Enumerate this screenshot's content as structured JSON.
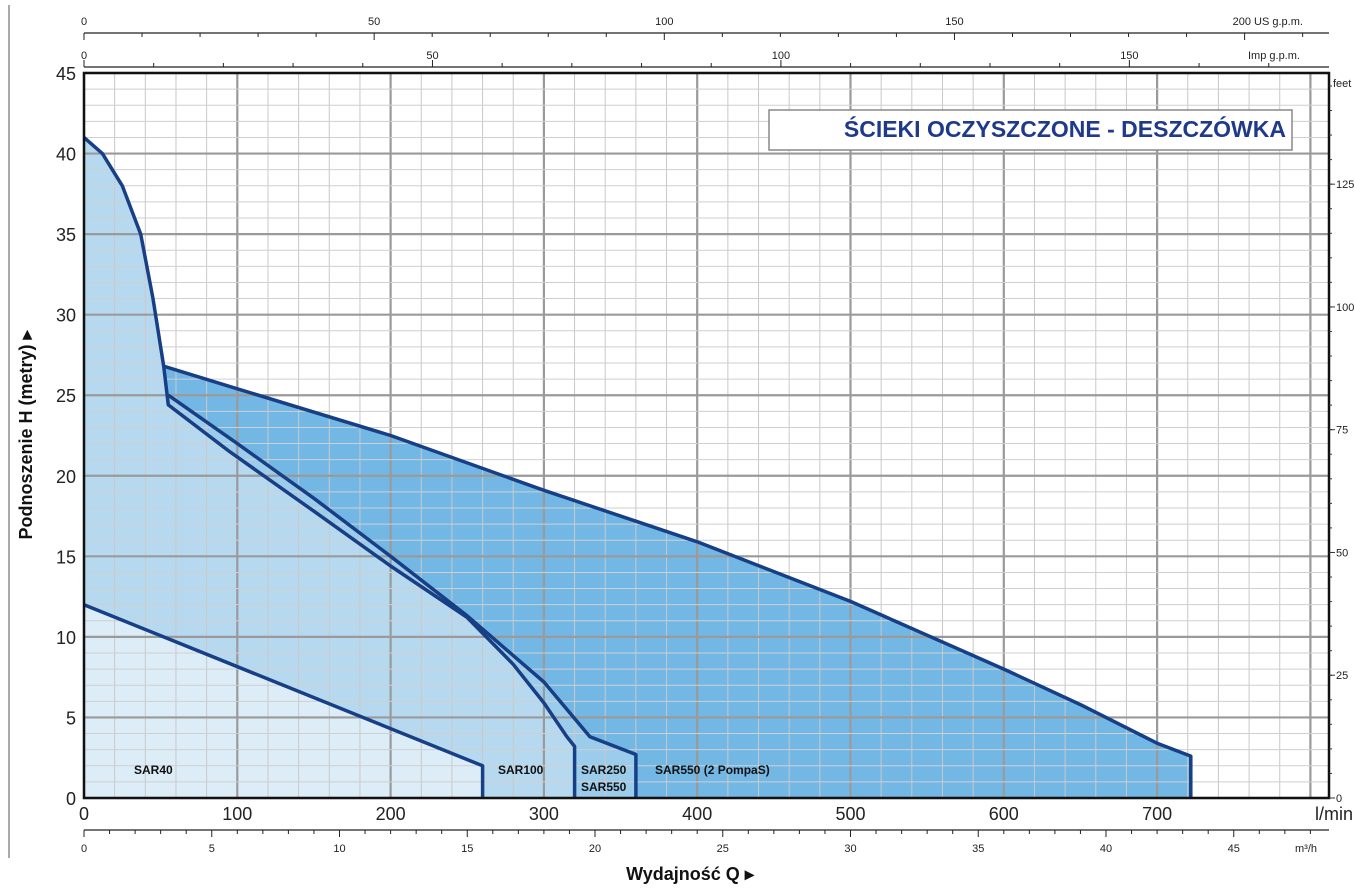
{
  "chart_data": {
    "type": "area",
    "title": "ŚCIEKI OCZYSZCZONE - DESZCZÓWKA",
    "ylabel": "Podnoszenie H (metry)",
    "xlabel": "Wydajność Q",
    "ylabel_arrow": "▸",
    "xlabel_arrow": "▸",
    "ylim": [
      0,
      45
    ],
    "xlim": [
      0,
      800
    ],
    "x_unit": "l/min",
    "y_ticks": [
      0,
      5,
      10,
      15,
      20,
      25,
      30,
      35,
      40,
      45
    ],
    "x_ticks": [
      0,
      100,
      200,
      300,
      400,
      500,
      600,
      700
    ],
    "secondary_axes": {
      "m3h": {
        "unit": "m³/h",
        "ticks": [
          0,
          5,
          10,
          15,
          20,
          25,
          30,
          35,
          40,
          45
        ]
      },
      "us_gpm": {
        "unit": "US g.p.m.",
        "ticks": [
          0,
          50,
          100,
          150,
          200
        ]
      },
      "imp_gpm": {
        "unit": "Imp g.p.m.",
        "ticks": [
          0,
          50,
          100,
          150
        ]
      },
      "feet": {
        "unit": "feet",
        "ticks": [
          0,
          25,
          50,
          75,
          100,
          125
        ]
      }
    },
    "series": [
      {
        "name": "SAR40",
        "color": "#dcedf8",
        "points": [
          [
            0,
            12
          ],
          [
            260,
            2
          ],
          [
            260,
            0
          ],
          [
            0,
            0
          ]
        ]
      },
      {
        "name": "SAR100",
        "color": "#b7d9f0",
        "points": [
          [
            0,
            41
          ],
          [
            12,
            40
          ],
          [
            25,
            38
          ],
          [
            37,
            35
          ],
          [
            45,
            31
          ],
          [
            52,
            26.8
          ],
          [
            55,
            24.4
          ],
          [
            95,
            21.5
          ],
          [
            150,
            17.8
          ],
          [
            200,
            14.4
          ],
          [
            250,
            11.2
          ],
          [
            280,
            8.3
          ],
          [
            300,
            5.9
          ],
          [
            315,
            3.8
          ],
          [
            320,
            3.2
          ],
          [
            320,
            0
          ],
          [
            260,
            0
          ],
          [
            260,
            2
          ],
          [
            0,
            12
          ]
        ]
      },
      {
        "name": "SAR250",
        "color": "#9ccceb",
        "points": [
          [
            55,
            24.4
          ],
          [
            55,
            25.0
          ],
          [
            100,
            22.0
          ],
          [
            150,
            18.6
          ],
          [
            200,
            15.0
          ],
          [
            250,
            11.3
          ],
          [
            300,
            7.2
          ],
          [
            330,
            3.8
          ],
          [
            360,
            2.7
          ],
          [
            360,
            0
          ],
          [
            320,
            0
          ],
          [
            320,
            3.2
          ],
          [
            315,
            3.8
          ],
          [
            300,
            5.9
          ],
          [
            280,
            8.3
          ],
          [
            250,
            11.2
          ],
          [
            200,
            14.4
          ],
          [
            150,
            17.8
          ],
          [
            95,
            21.5
          ]
        ]
      },
      {
        "name": "SAR550",
        "color": "#9ccceb",
        "points": []
      },
      {
        "name": "SAR550 (2 PompaS)",
        "color": "#73b8e5",
        "points": [
          [
            52,
            26.8
          ],
          [
            100,
            25.4
          ],
          [
            200,
            22.5
          ],
          [
            300,
            19.1
          ],
          [
            400,
            15.9
          ],
          [
            500,
            12.2
          ],
          [
            600,
            8.0
          ],
          [
            650,
            5.8
          ],
          [
            700,
            3.4
          ],
          [
            722,
            2.6
          ],
          [
            722,
            0
          ],
          [
            360,
            0
          ],
          [
            360,
            2.7
          ],
          [
            330,
            3.8
          ],
          [
            300,
            7.2
          ],
          [
            250,
            11.3
          ],
          [
            200,
            15.0
          ],
          [
            150,
            18.6
          ],
          [
            100,
            22.0
          ],
          [
            55,
            25.0
          ]
        ]
      }
    ],
    "series_labels": [
      "SAR40",
      "SAR100",
      "SAR250",
      "SAR550",
      "SAR550 (2 PompaS)"
    ],
    "grid": true,
    "legend": "inside-bottom"
  }
}
